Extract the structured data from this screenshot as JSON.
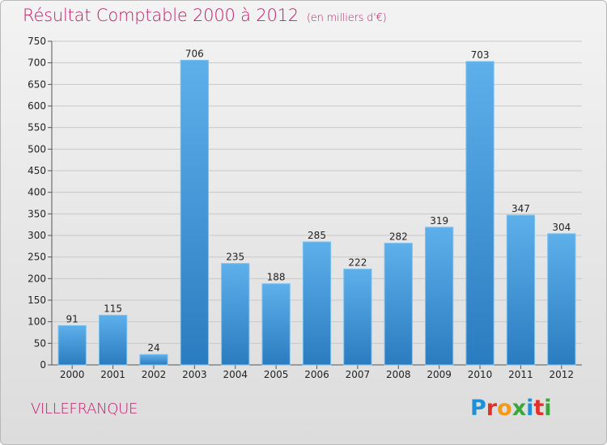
{
  "header": {
    "title": "Résultat Comptable 2000 à 2012",
    "unit": "(en milliers d'€)"
  },
  "footer": {
    "city": "VILLEFRANQUE",
    "logo": [
      {
        "ch": "P",
        "color": "#1f8fd6"
      },
      {
        "ch": "r",
        "color": "#e0322a"
      },
      {
        "ch": "o",
        "color": "#f29a1a"
      },
      {
        "ch": "x",
        "color": "#3aa63a"
      },
      {
        "ch": "i",
        "color": "#1f8fd6"
      },
      {
        "ch": "t",
        "color": "#e0322a"
      },
      {
        "ch": "i",
        "color": "#3aa63a"
      }
    ]
  },
  "colors": {
    "bar_top": "#5db0ea",
    "bar_bottom": "#2a7cc0",
    "grid": "#c8c8c8",
    "title": "#c21b6a"
  },
  "chart_data": {
    "type": "bar",
    "title": "Résultat Comptable 2000 à 2012",
    "subtitle": "(en milliers d'€)",
    "categories": [
      "2000",
      "2001",
      "2002",
      "2003",
      "2004",
      "2005",
      "2006",
      "2007",
      "2008",
      "2009",
      "2010",
      "2011",
      "2012"
    ],
    "values": [
      91,
      115,
      24,
      706,
      235,
      188,
      285,
      222,
      282,
      319,
      703,
      347,
      304
    ],
    "ylim": [
      0,
      750
    ],
    "yticks": [
      0,
      50,
      100,
      150,
      200,
      250,
      300,
      350,
      400,
      450,
      500,
      550,
      600,
      650,
      700,
      750
    ],
    "grid": true,
    "data_labels": true
  }
}
